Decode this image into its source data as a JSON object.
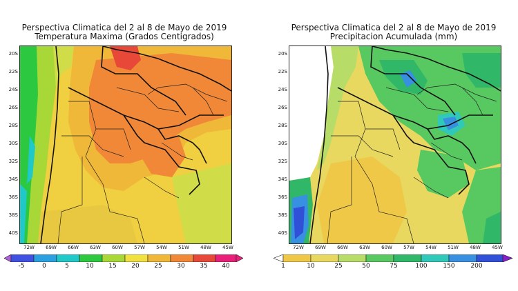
{
  "panels": [
    {
      "id": "temperature",
      "title_line1": "Perspectiva Climatica del 2 al 8 de Mayo de 2019",
      "title_line2": "Temperatura Maxima (Grados Centigrados)",
      "y_ticks": [
        "20S",
        "22S",
        "24S",
        "26S",
        "28S",
        "30S",
        "32S",
        "34S",
        "36S",
        "38S",
        "40S"
      ],
      "x_ticks": [
        "72W",
        "69W",
        "66W",
        "63W",
        "60W",
        "57W",
        "54W",
        "51W",
        "48W",
        "45W"
      ],
      "colorbar": {
        "labels": [
          "-5",
          "0",
          "5",
          "10",
          "15",
          "20",
          "25",
          "30",
          "35",
          "40"
        ],
        "colors": [
          "#b060d8",
          "#4050e0",
          "#2aa0e0",
          "#20c8c8",
          "#2cc840",
          "#a8d838",
          "#f0e040",
          "#f0b838",
          "#f08838",
          "#e84838",
          "#e8207a"
        ]
      }
    },
    {
      "id": "precipitation",
      "title_line1": "Perspectiva Climatica del 2 al 8 de Mayo de 2019",
      "title_line2": "Precipitacion Acumulada (mm)",
      "y_ticks": [
        "20S",
        "22S",
        "24S",
        "26S",
        "28S",
        "30S",
        "32S",
        "34S",
        "36S",
        "38S",
        "40S"
      ],
      "x_ticks": [
        "72W",
        "69W",
        "66W",
        "63W",
        "60W",
        "57W",
        "54W",
        "51W",
        "48W",
        "45W"
      ],
      "colorbar": {
        "labels": [
          "1",
          "10",
          "25",
          "50",
          "75",
          "100",
          "150",
          "200"
        ],
        "colors": [
          "#ffffff",
          "#f0c848",
          "#e8d860",
          "#b8dc68",
          "#58c860",
          "#30b868",
          "#30c8b8",
          "#3890e0",
          "#3050d8",
          "#8820c8"
        ]
      }
    }
  ]
}
